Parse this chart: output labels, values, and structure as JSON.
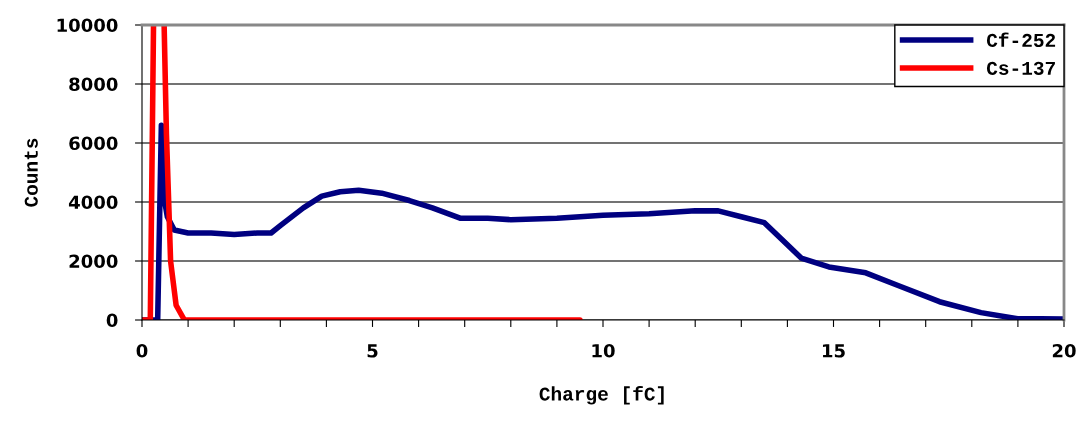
{
  "chart_data": {
    "type": "line",
    "xlabel": "Charge [fC]",
    "ylabel": "Counts",
    "xlim": [
      0,
      20
    ],
    "ylim": [
      0,
      10000
    ],
    "xticks": [
      0,
      {
        "value": 1,
        "label": null
      },
      {
        "value": 2,
        "label": null
      },
      {
        "value": 3,
        "label": null
      },
      {
        "value": 4,
        "label": null
      },
      5,
      {
        "value": 6,
        "label": null
      },
      {
        "value": 7,
        "label": null
      },
      {
        "value": 8,
        "label": null
      },
      {
        "value": 9,
        "label": null
      },
      10,
      {
        "value": 11,
        "label": null
      },
      {
        "value": 12,
        "label": null
      },
      {
        "value": 13,
        "label": null
      },
      {
        "value": 14,
        "label": null
      },
      15,
      {
        "value": 16,
        "label": null
      },
      {
        "value": 17,
        "label": null
      },
      {
        "value": 18,
        "label": null
      },
      {
        "value": 19,
        "label": null
      },
      20
    ],
    "yticks": [
      0,
      2000,
      4000,
      6000,
      8000,
      10000
    ],
    "grid": "y",
    "legend": "top right",
    "marker": "none",
    "line_style": "solid",
    "series": [
      {
        "name": "Cf-252",
        "color": "#000080",
        "x": [
          0,
          0.34,
          0.42,
          0.5,
          0.55,
          0.7,
          1.0,
          1.5,
          2.0,
          2.5,
          2.8,
          3.0,
          3.5,
          3.9,
          4.3,
          4.7,
          5.2,
          5.8,
          6.3,
          6.9,
          7.5,
          8.0,
          9.0,
          10.0,
          11.0,
          12.0,
          12.5,
          13.0,
          13.5,
          14.0,
          14.3,
          14.9,
          15.7,
          16.4,
          17.3,
          18.2,
          19.0,
          19.5,
          20.0
        ],
        "values": [
          0,
          0,
          6600,
          3950,
          3500,
          3050,
          2950,
          2950,
          2900,
          2950,
          2950,
          3200,
          3800,
          4200,
          4350,
          4400,
          4300,
          4050,
          3800,
          3450,
          3450,
          3400,
          3450,
          3550,
          3600,
          3700,
          3700,
          3500,
          3300,
          2550,
          2100,
          1800,
          1600,
          1170,
          620,
          250,
          40,
          40,
          30
        ]
      },
      {
        "name": "Cs-137",
        "color": "#ff0000",
        "x": [
          0,
          0.18,
          0.25,
          0.35,
          0.48,
          0.53,
          0.58,
          0.62,
          0.74,
          0.92,
          9.5
        ],
        "values": [
          0,
          0,
          10000,
          null,
          10000,
          6300,
          3950,
          2000,
          500,
          0,
          0
        ]
      }
    ]
  }
}
